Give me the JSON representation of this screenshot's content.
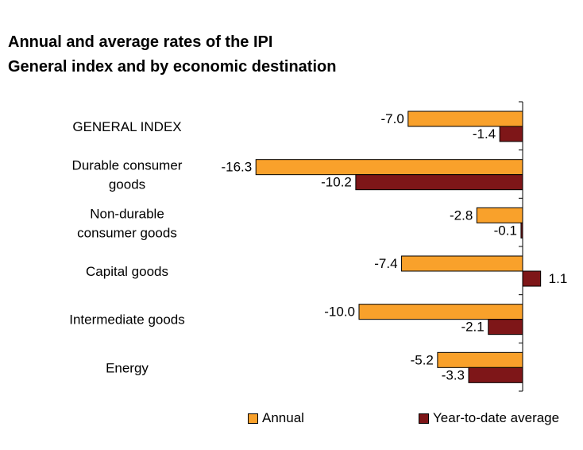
{
  "chart_data": {
    "type": "bar",
    "orientation": "horizontal",
    "title": "Annual and average rates of the IPI",
    "subtitle": "General index and by economic destination",
    "categories": [
      [
        "GENERAL INDEX"
      ],
      [
        "Durable consumer",
        "goods"
      ],
      [
        "Non-durable",
        "consumer goods"
      ],
      [
        "Capital goods"
      ],
      [
        "Intermediate goods"
      ],
      [
        "Energy"
      ]
    ],
    "series": [
      {
        "name": "Annual",
        "color": "#F9A12B",
        "values": [
          -7.0,
          -16.3,
          -2.8,
          -7.4,
          -10.0,
          -5.2
        ],
        "labels": [
          "-7.0",
          "-16.3",
          "-2.8",
          "-7.4",
          "-10.0",
          "-5.2"
        ]
      },
      {
        "name": "Year-to-date average",
        "color": "#7E1618",
        "values": [
          -1.4,
          -10.2,
          -0.1,
          1.1,
          -2.1,
          -3.3
        ],
        "labels": [
          "-1.4",
          "-10.2",
          "-0.1",
          "1.1",
          "-2.1",
          "-3.3"
        ]
      }
    ],
    "xlim": [
      -16.3,
      1.1
    ],
    "grid": false,
    "legend": "bottom"
  }
}
